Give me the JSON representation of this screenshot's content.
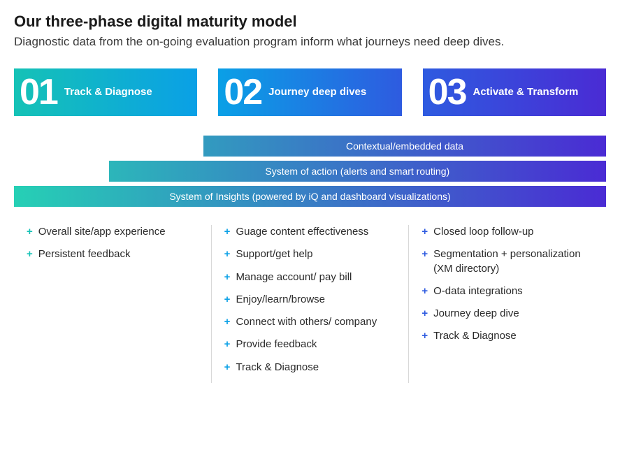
{
  "header": {
    "title": "Our three-phase digital maturity model",
    "subtitle": "Diagnostic data from the on-going evaluation program inform what journeys need deep dives."
  },
  "phases": [
    {
      "num": "01",
      "label": "Track & Diagnose",
      "gradient_from": "#15c2b6",
      "gradient_to": "#0aa0e6"
    },
    {
      "num": "02",
      "label": "Journey deep dives",
      "gradient_from": "#0aa0e6",
      "gradient_to": "#2e5be0"
    },
    {
      "num": "03",
      "label": "Activate & Transform",
      "gradient_from": "#2e5be0",
      "gradient_to": "#4a2bd4"
    }
  ],
  "bars": {
    "gradient_from": "#26d0b5",
    "gradient_to": "#4a2bd4",
    "full_width_pct": 100,
    "items": [
      {
        "label": "Contextual/embedded data",
        "width_pct": 68
      },
      {
        "label": "System of action (alerts and smart routing)",
        "width_pct": 84
      },
      {
        "label": "System of Insights (powered by iQ and dashboard visualizations)",
        "width_pct": 100
      }
    ]
  },
  "columns": [
    {
      "plus_color": "#15c2b6",
      "items": [
        "Overall site/app experience",
        "Persistent feedback"
      ]
    },
    {
      "plus_color": "#0aa0e6",
      "items": [
        "Guage content effectiveness",
        "Support/get help",
        "Manage account/ pay bill",
        "Enjoy/learn/browse",
        "Connect with others/ company",
        "Provide feedback",
        "Track & Diagnose"
      ]
    },
    {
      "plus_color": "#2e5be0",
      "items": [
        "Closed loop follow-up",
        "Segmentation + personalization (XM directory)",
        "O-data integrations",
        "Journey deep dive",
        "Track & Diagnose"
      ]
    }
  ]
}
